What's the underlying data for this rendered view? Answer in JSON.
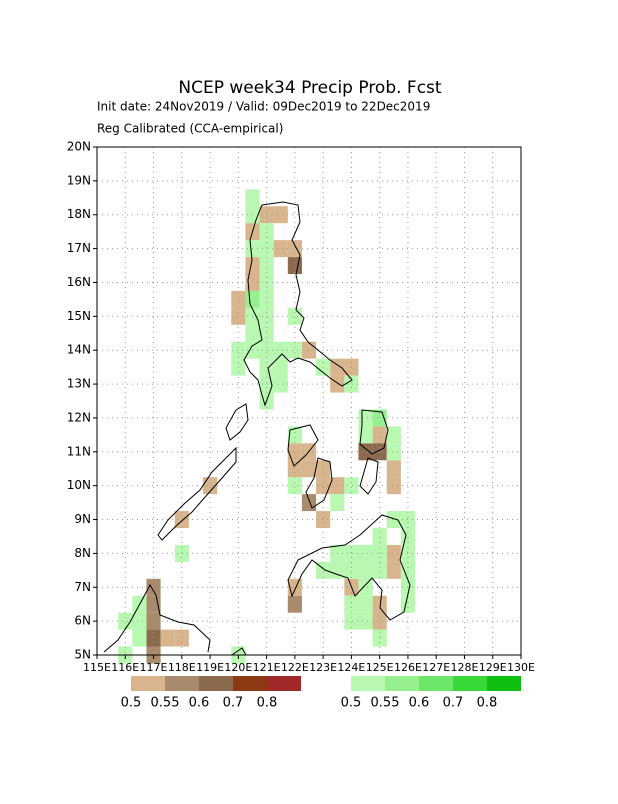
{
  "header": {
    "title": "NCEP week34 Precip Prob. Fcst",
    "subtitle": "Init date: 24Nov2019 / Valid: 09Dec2019 to 22Dec2019",
    "method": "Reg Calibrated (CCA-empirical)"
  },
  "map": {
    "xlim": [
      115,
      130
    ],
    "ylim": [
      5,
      20
    ],
    "grid": true,
    "cell_size": 0.5,
    "xticks": [
      {
        "value": 115,
        "label": "115E"
      },
      {
        "value": 116,
        "label": "116E"
      },
      {
        "value": 117,
        "label": "117E"
      },
      {
        "value": 118,
        "label": "118E"
      },
      {
        "value": 119,
        "label": "119E"
      },
      {
        "value": 120,
        "label": "120E"
      },
      {
        "value": 121,
        "label": "121E"
      },
      {
        "value": 122,
        "label": "122E"
      },
      {
        "value": 123,
        "label": "123E"
      },
      {
        "value": 124,
        "label": "124E"
      },
      {
        "value": 125,
        "label": "125E"
      },
      {
        "value": 126,
        "label": "126E"
      },
      {
        "value": 127,
        "label": "127E"
      },
      {
        "value": 128,
        "label": "128E"
      },
      {
        "value": 129,
        "label": "129E"
      },
      {
        "value": 130,
        "label": "130E"
      }
    ],
    "yticks": [
      {
        "value": 5,
        "label": "5N"
      },
      {
        "value": 6,
        "label": "6N"
      },
      {
        "value": 7,
        "label": "7N"
      },
      {
        "value": 8,
        "label": "8N"
      },
      {
        "value": 9,
        "label": "9N"
      },
      {
        "value": 10,
        "label": "10N"
      },
      {
        "value": 11,
        "label": "11N"
      },
      {
        "value": 12,
        "label": "12N"
      },
      {
        "value": 13,
        "label": "13N"
      },
      {
        "value": 14,
        "label": "14N"
      },
      {
        "value": 15,
        "label": "15N"
      },
      {
        "value": 16,
        "label": "16N"
      },
      {
        "value": 17,
        "label": "17N"
      },
      {
        "value": 18,
        "label": "18N"
      },
      {
        "value": 19,
        "label": "19N"
      },
      {
        "value": 20,
        "label": "20N"
      }
    ],
    "dry_scale": {
      "levels": [
        0.5,
        0.55,
        0.6,
        0.7,
        0.8
      ],
      "colors": [
        "#d8b58c",
        "#a88a6c",
        "#8b6a4e",
        "#8b3a14",
        "#a02828"
      ]
    },
    "wet_scale": {
      "levels": [
        0.5,
        0.55,
        0.6,
        0.7,
        0.8
      ],
      "colors": [
        "#b8f8b0",
        "#96f090",
        "#6ee66a",
        "#38d838",
        "#10c010"
      ]
    },
    "dry_cells": [
      [
        121,
        18,
        0.5
      ],
      [
        121.5,
        18,
        0.5
      ],
      [
        120.5,
        17.5,
        0.5
      ],
      [
        121.5,
        17,
        0.5
      ],
      [
        122,
        17,
        0.5
      ],
      [
        122,
        16.5,
        0.6
      ],
      [
        120.5,
        16.5,
        0.5
      ],
      [
        120.5,
        16,
        0.5
      ],
      [
        120,
        15.5,
        0.5
      ],
      [
        120,
        15,
        0.5
      ],
      [
        122.5,
        14,
        0.5
      ],
      [
        123.5,
        13.5,
        0.5
      ],
      [
        124,
        13.5,
        0.5
      ],
      [
        123.5,
        13,
        0.5
      ],
      [
        125,
        11.5,
        0.5
      ],
      [
        124.5,
        11,
        0.6
      ],
      [
        125,
        11,
        0.6
      ],
      [
        122,
        11,
        0.5
      ],
      [
        122.5,
        11,
        0.5
      ],
      [
        122,
        10.5,
        0.5
      ],
      [
        122.5,
        10.5,
        0.5
      ],
      [
        123,
        10.5,
        0.5
      ],
      [
        123,
        10,
        0.5
      ],
      [
        123.5,
        10,
        0.5
      ],
      [
        125.5,
        10.5,
        0.5
      ],
      [
        125.5,
        10,
        0.5
      ],
      [
        122.5,
        9.5,
        0.55
      ],
      [
        123,
        9,
        0.5
      ],
      [
        119,
        10,
        0.5
      ],
      [
        118,
        9,
        0.5
      ],
      [
        122,
        7,
        0.5
      ],
      [
        122,
        6.5,
        0.55
      ],
      [
        125.5,
        8,
        0.5
      ],
      [
        125.5,
        7.5,
        0.5
      ],
      [
        125,
        6.5,
        0.5
      ],
      [
        125,
        6,
        0.5
      ],
      [
        124,
        7,
        0.5
      ],
      [
        117,
        7,
        0.55
      ],
      [
        117,
        6.5,
        0.55
      ],
      [
        117,
        6,
        0.55
      ],
      [
        117,
        5.5,
        0.6
      ],
      [
        117.5,
        5.5,
        0.5
      ],
      [
        118,
        5.5,
        0.5
      ],
      [
        117,
        5,
        0.55
      ]
    ],
    "wet_cells": [
      [
        120.5,
        18.5,
        0.5
      ],
      [
        120.5,
        18,
        0.5
      ],
      [
        120.5,
        17,
        0.5
      ],
      [
        121,
        17.5,
        0.5
      ],
      [
        121,
        17,
        0.5
      ],
      [
        121,
        16.5,
        0.5
      ],
      [
        121,
        16,
        0.5
      ],
      [
        120.5,
        15.5,
        0.55
      ],
      [
        121,
        15.5,
        0.5
      ],
      [
        121,
        15,
        0.5
      ],
      [
        120.5,
        15,
        0.5
      ],
      [
        121,
        14.5,
        0.5
      ],
      [
        120.5,
        14.5,
        0.5
      ],
      [
        120,
        14,
        0.5
      ],
      [
        120.5,
        14,
        0.5
      ],
      [
        121,
        14,
        0.5
      ],
      [
        121.5,
        14,
        0.5
      ],
      [
        120,
        13.5,
        0.5
      ],
      [
        121,
        13.5,
        0.5
      ],
      [
        121.5,
        13.5,
        0.5
      ],
      [
        121,
        13,
        0.5
      ],
      [
        121.5,
        13,
        0.5
      ],
      [
        121,
        12.5,
        0.5
      ],
      [
        122,
        15,
        0.5
      ],
      [
        122,
        14,
        0.5
      ],
      [
        123,
        13.5,
        0.5
      ],
      [
        124,
        13,
        0.5
      ],
      [
        124.5,
        12,
        0.5
      ],
      [
        125,
        12,
        0.55
      ],
      [
        124.5,
        11.5,
        0.5
      ],
      [
        125.5,
        11,
        0.5
      ],
      [
        125.5,
        11.5,
        0.5
      ],
      [
        124,
        10,
        0.5
      ],
      [
        123.5,
        9.5,
        0.5
      ],
      [
        122,
        11.5,
        0.5
      ],
      [
        122,
        10,
        0.5
      ],
      [
        123.5,
        8,
        0.5
      ],
      [
        124,
        8,
        0.5
      ],
      [
        124.5,
        8,
        0.5
      ],
      [
        125,
        8,
        0.5
      ],
      [
        125,
        8.5,
        0.5
      ],
      [
        125.5,
        9,
        0.5
      ],
      [
        126,
        9,
        0.5
      ],
      [
        126,
        8.5,
        0.5
      ],
      [
        126,
        8,
        0.5
      ],
      [
        123,
        7.5,
        0.5
      ],
      [
        123.5,
        7.5,
        0.5
      ],
      [
        124,
        7.5,
        0.5
      ],
      [
        124.5,
        7.5,
        0.5
      ],
      [
        125,
        7.5,
        0.5
      ],
      [
        126,
        7.5,
        0.5
      ],
      [
        126,
        7,
        0.5
      ],
      [
        126,
        6.5,
        0.5
      ],
      [
        124.5,
        7,
        0.5
      ],
      [
        124.5,
        6.5,
        0.5
      ],
      [
        124.5,
        6,
        0.5
      ],
      [
        125,
        5.5,
        0.5
      ],
      [
        124,
        6.5,
        0.5
      ],
      [
        124,
        6,
        0.5
      ],
      [
        116.5,
        6.5,
        0.5
      ],
      [
        116.5,
        6,
        0.5
      ],
      [
        116.5,
        5.5,
        0.5
      ],
      [
        116,
        6,
        0.5
      ],
      [
        116,
        5,
        0.5
      ],
      [
        118,
        8,
        0.5
      ],
      [
        120,
        5,
        0.5
      ]
    ]
  }
}
